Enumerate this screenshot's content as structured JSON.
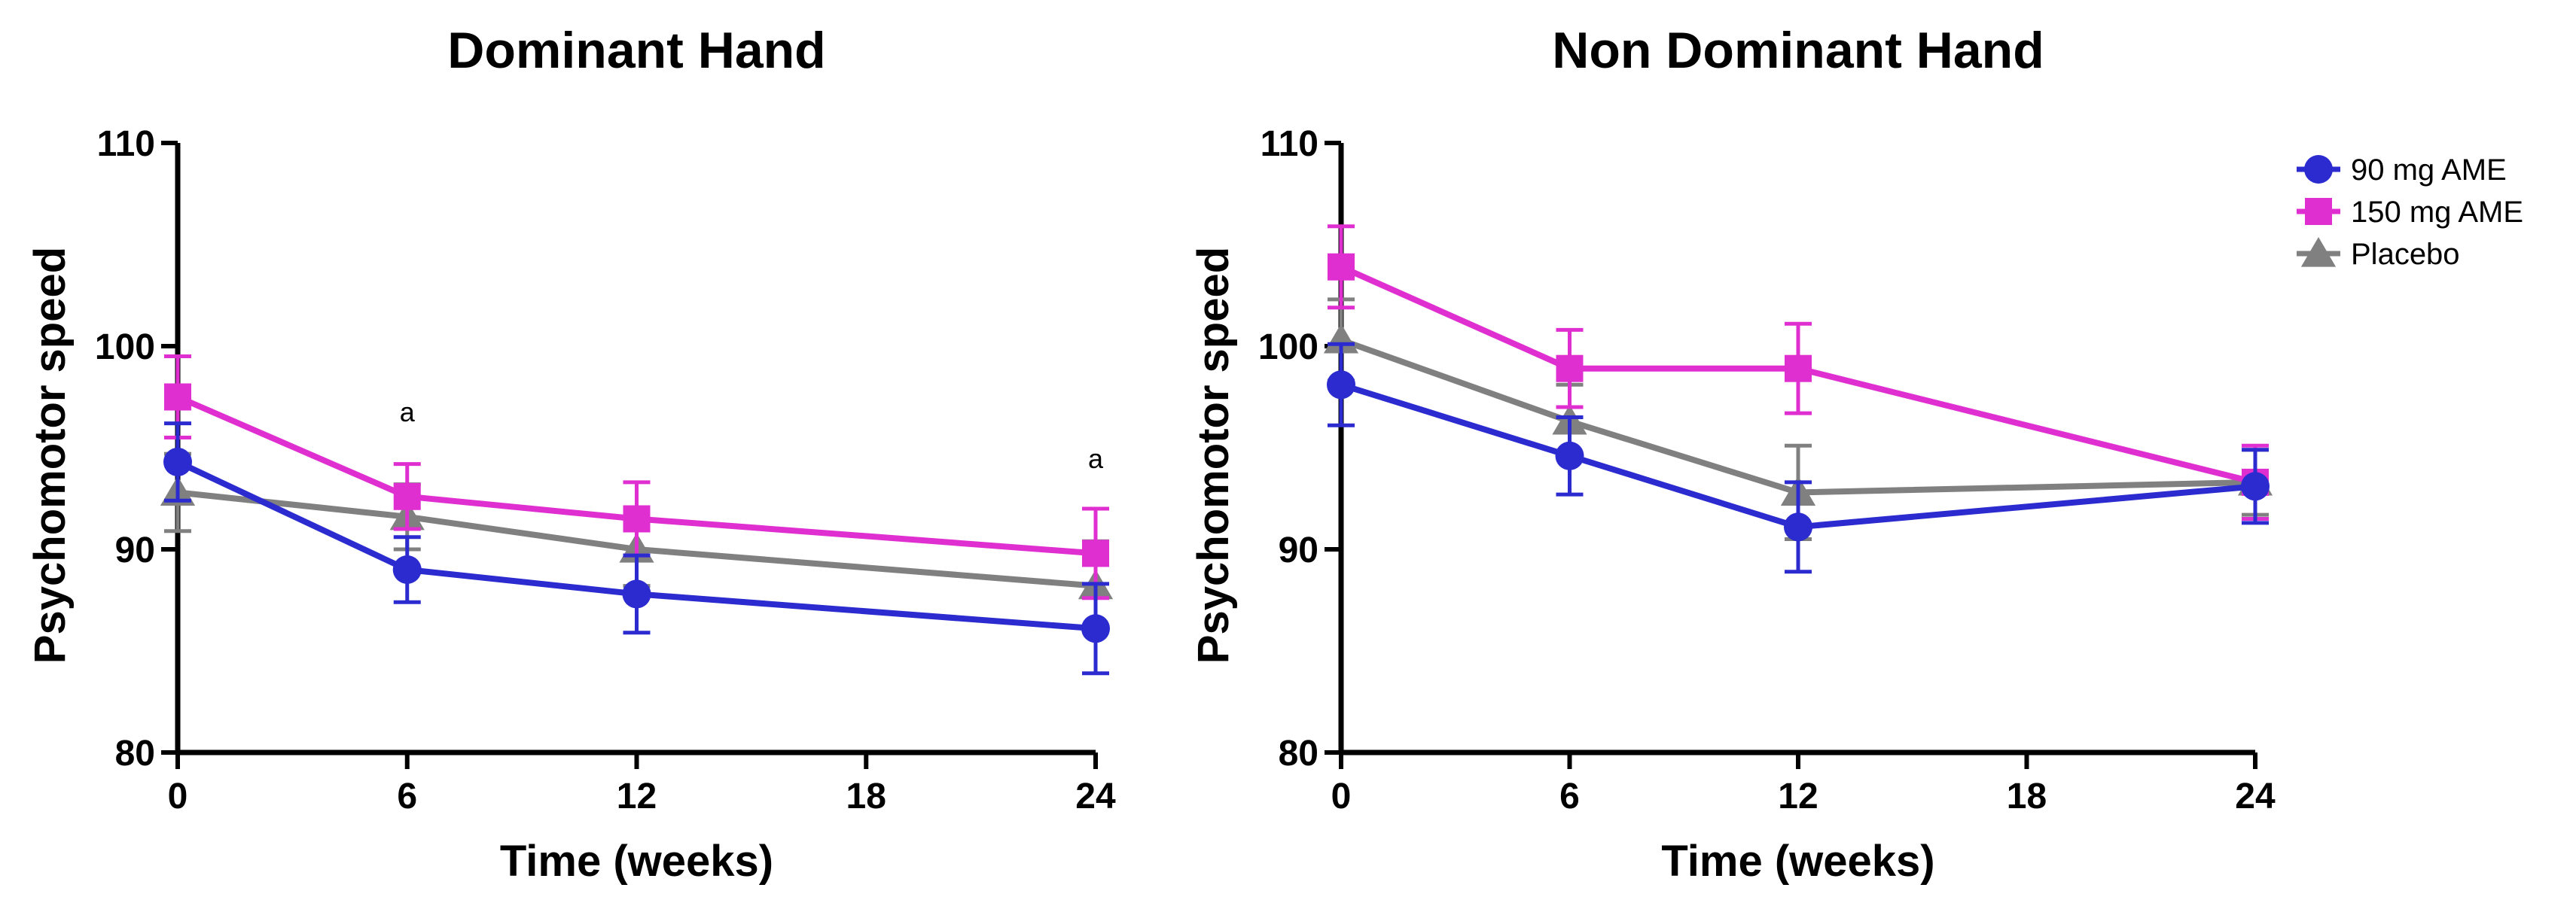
{
  "chart_data": [
    {
      "type": "line",
      "title": "Dominant Hand",
      "xlabel": "Time (weeks)",
      "ylabel": "Psychomotor speed",
      "x": [
        0,
        6,
        12,
        24
      ],
      "xticks": [
        0,
        6,
        12,
        18,
        24
      ],
      "xlim": [
        0,
        24
      ],
      "yticks": [
        80,
        90,
        100,
        110
      ],
      "ylim": [
        80,
        110
      ],
      "series": [
        {
          "name": "90 mg AME",
          "color": "#2b2bcf",
          "marker": "circle",
          "values": [
            94.3,
            89.0,
            87.8,
            86.1
          ],
          "errors": [
            1.9,
            1.6,
            1.9,
            2.2
          ]
        },
        {
          "name": "150 mg AME",
          "color": "#e02fd0",
          "marker": "square",
          "values": [
            97.5,
            92.6,
            91.5,
            89.8
          ],
          "errors": [
            2.0,
            1.6,
            1.8,
            2.2
          ]
        },
        {
          "name": "Placebo",
          "color": "#808080",
          "marker": "triangle",
          "values": [
            92.8,
            91.6,
            90.0,
            88.2
          ],
          "errors": [
            1.9,
            1.6,
            1.8,
            2.2
          ]
        }
      ],
      "annotations": [
        {
          "text": "a",
          "x": 6,
          "y": 96.3
        },
        {
          "text": "a",
          "x": 24,
          "y": 94.0
        }
      ]
    },
    {
      "type": "line",
      "title": "Non Dominant Hand",
      "xlabel": "Time (weeks)",
      "ylabel": "Psychomotor speed",
      "x": [
        0,
        6,
        12,
        24
      ],
      "xticks": [
        0,
        6,
        12,
        18,
        24
      ],
      "xlim": [
        0,
        24
      ],
      "yticks": [
        80,
        90,
        100,
        110
      ],
      "ylim": [
        80,
        110
      ],
      "series": [
        {
          "name": "90 mg AME",
          "color": "#2b2bcf",
          "marker": "circle",
          "values": [
            98.1,
            94.6,
            91.1,
            93.1
          ],
          "errors": [
            2.0,
            1.9,
            2.2,
            1.8
          ]
        },
        {
          "name": "150 mg AME",
          "color": "#e02fd0",
          "marker": "square",
          "values": [
            103.9,
            98.9,
            98.9,
            93.3
          ],
          "errors": [
            2.0,
            1.9,
            2.2,
            1.8
          ]
        },
        {
          "name": "Placebo",
          "color": "#808080",
          "marker": "triangle",
          "values": [
            100.3,
            96.3,
            92.8,
            93.3
          ],
          "errors": [
            2.0,
            1.8,
            2.3,
            1.6
          ]
        }
      ],
      "annotations": []
    }
  ],
  "legend": {
    "placement": "top-right",
    "items": [
      {
        "label": "90 mg AME",
        "color": "#2b2bcf",
        "marker": "circle"
      },
      {
        "label": "150 mg AME",
        "color": "#e02fd0",
        "marker": "square"
      },
      {
        "label": "Placebo",
        "color": "#808080",
        "marker": "triangle"
      }
    ]
  }
}
